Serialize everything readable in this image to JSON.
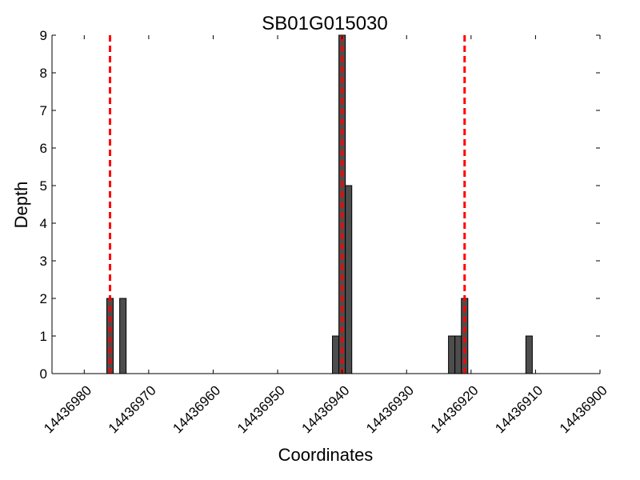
{
  "chart_data": {
    "type": "bar",
    "title": "SB01G015030",
    "xlabel": "Coordinates",
    "ylabel": "Depth",
    "x_reversed": true,
    "xlim": [
      14436985,
      14436900
    ],
    "ylim": [
      0,
      9
    ],
    "xticks": [
      14436980,
      14436970,
      14436960,
      14436950,
      14436940,
      14436930,
      14436920,
      14436910,
      14436900
    ],
    "xtick_labels": [
      "14436980",
      "14436970",
      "14436960",
      "14436950",
      "14436940",
      "14436930",
      "14436920",
      "14436910",
      "14436900"
    ],
    "yticks": [
      0,
      1,
      2,
      3,
      4,
      5,
      6,
      7,
      8,
      9
    ],
    "ytick_labels": [
      "0",
      "1",
      "2",
      "3",
      "4",
      "5",
      "6",
      "7",
      "8",
      "9"
    ],
    "bar_width": 1,
    "x": [
      14436976,
      14436974,
      14436941,
      14436940,
      14436939,
      14436923,
      14436922,
      14436921,
      14436911
    ],
    "values": [
      2,
      2,
      1,
      9,
      5,
      1,
      1,
      2,
      1
    ],
    "bar_color": "#4d4d4d",
    "reference_lines": [
      14436976,
      14436940,
      14436921
    ],
    "reference_line_color": "#ff0000",
    "grid": false
  }
}
